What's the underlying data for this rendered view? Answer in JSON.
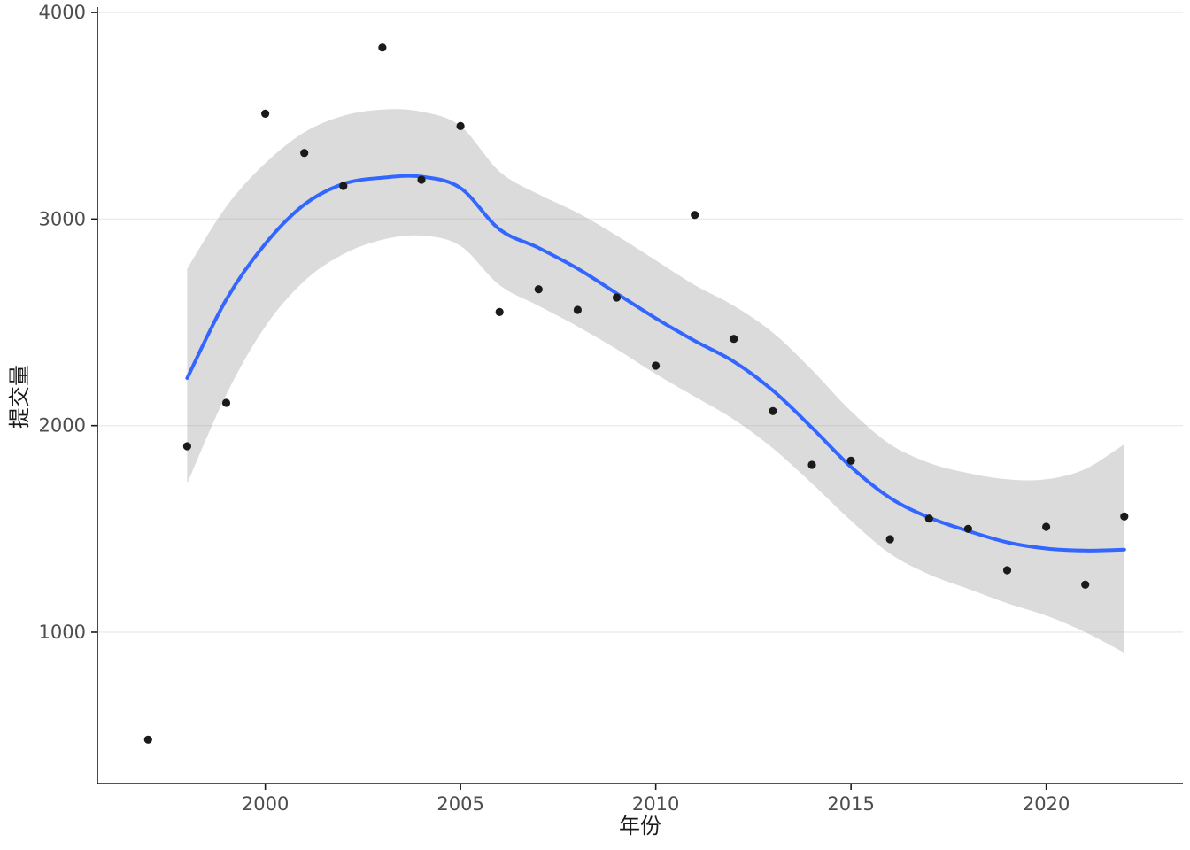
{
  "chart_data": {
    "type": "scatter",
    "title": "",
    "xlabel": "年份",
    "ylabel": "提交量",
    "legend": "none",
    "grid": "horizontal-major",
    "x_ticks": [
      2000,
      2005,
      2010,
      2015,
      2020
    ],
    "y_ticks": [
      1000,
      2000,
      3000,
      4000
    ],
    "x_domain": [
      1995.7,
      2023.5
    ],
    "y_domain": [
      267,
      4026
    ],
    "points": {
      "x": [
        1997,
        1998,
        1999,
        2000,
        2001,
        2002,
        2003,
        2004,
        2005,
        2006,
        2007,
        2008,
        2009,
        2010,
        2011,
        2012,
        2013,
        2014,
        2015,
        2016,
        2017,
        2018,
        2019,
        2020,
        2021,
        2022
      ],
      "y": [
        480,
        1900,
        2110,
        3510,
        3320,
        3160,
        3830,
        3190,
        3450,
        2550,
        2660,
        2560,
        2620,
        2290,
        3020,
        2420,
        2070,
        1810,
        1830,
        1450,
        1550,
        1500,
        1300,
        1510,
        1230,
        1560
      ]
    },
    "smooth_line": {
      "name": "loess-fit",
      "x": [
        1998,
        1999,
        2000,
        2001,
        2002,
        2003,
        2004,
        2005,
        2006,
        2007,
        2008,
        2009,
        2010,
        2011,
        2012,
        2013,
        2014,
        2015,
        2016,
        2017,
        2018,
        2019,
        2020,
        2021,
        2022
      ],
      "y": [
        2230,
        2610,
        2880,
        3070,
        3170,
        3200,
        3205,
        3150,
        2950,
        2860,
        2760,
        2640,
        2520,
        2410,
        2310,
        2170,
        1990,
        1800,
        1650,
        1555,
        1490,
        1435,
        1405,
        1395,
        1400
      ]
    },
    "ribbon": {
      "name": "confidence-band",
      "x": [
        1998,
        1999,
        2000,
        2001,
        2002,
        2003,
        2004,
        2005,
        2006,
        2007,
        2008,
        2009,
        2010,
        2011,
        2012,
        2013,
        2014,
        2015,
        2016,
        2017,
        2018,
        2019,
        2020,
        2021,
        2022
      ],
      "lower": [
        1720,
        2150,
        2480,
        2700,
        2830,
        2900,
        2920,
        2870,
        2680,
        2580,
        2480,
        2370,
        2250,
        2140,
        2030,
        1890,
        1720,
        1540,
        1380,
        1280,
        1210,
        1140,
        1080,
        1000,
        900
      ],
      "upper": [
        2760,
        3060,
        3270,
        3420,
        3500,
        3530,
        3520,
        3450,
        3230,
        3120,
        3030,
        2920,
        2800,
        2680,
        2580,
        2450,
        2270,
        2070,
        1910,
        1820,
        1770,
        1740,
        1740,
        1790,
        1910
      ]
    },
    "colors": {
      "point": "#1a1a1a",
      "line": "#3366FF",
      "ribbon": "#999999",
      "ribbon_opacity": 0.35,
      "grid": "#ebebeb",
      "axis": "#1a1a1a",
      "tick_text": "#4d4d4d",
      "background": "#ffffff"
    }
  }
}
